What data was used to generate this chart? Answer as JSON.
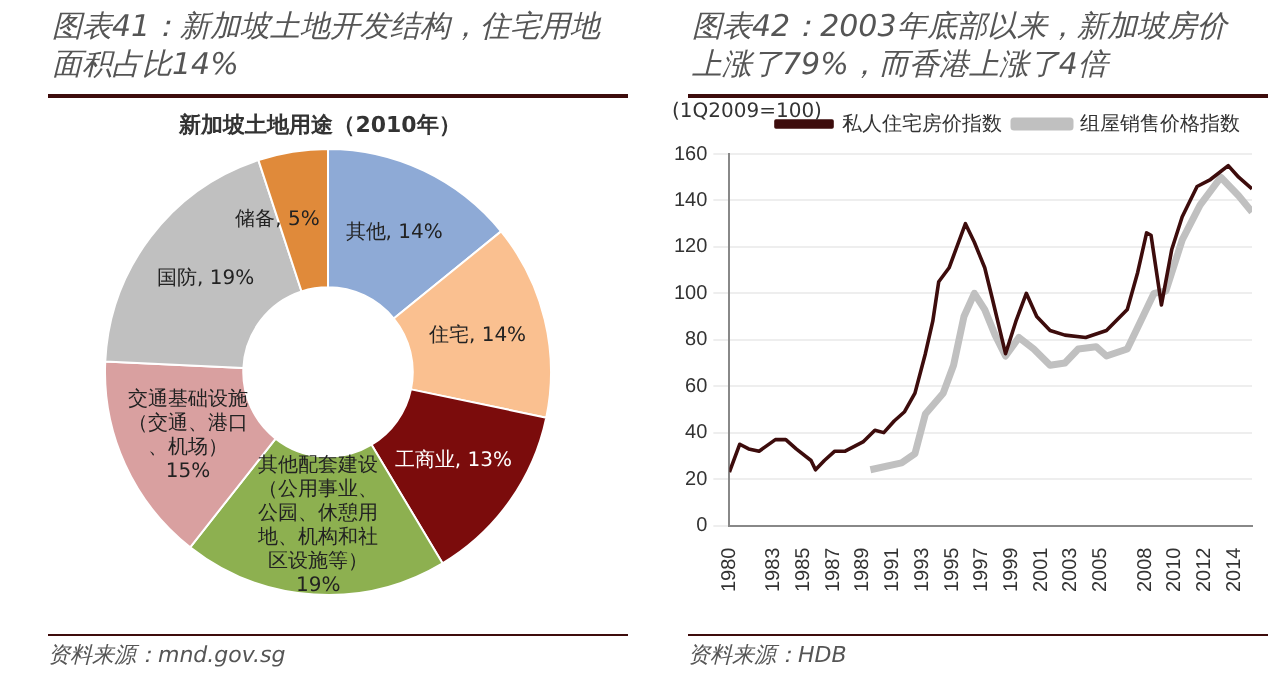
{
  "chart_data": [
    {
      "type": "donut",
      "title": "图表41：新加坡土地开发结构，住宅用地面积占比14%",
      "subtitle": "新加坡土地用途（2010年）",
      "categories": [
        "其他",
        "住宅",
        "工商业",
        "其他配套建设（公用事业、公园、休憩用地、机构和社区设施等）",
        "交通基础设施（交通、港口、机场）",
        "国防",
        "储备"
      ],
      "values": [
        14,
        14,
        13,
        19,
        15,
        19,
        5
      ],
      "value_labels": [
        "14%",
        "14%",
        "13%",
        "19%",
        "15%",
        "19%",
        "5%"
      ],
      "colors": [
        "#8eaad6",
        "#fac090",
        "#7b0c0c",
        "#8db050",
        "#d9a0a0",
        "#c0c0c0",
        "#e08a3a"
      ],
      "legend": false,
      "annotations": [
        "资料来源：mnd.gov.sg"
      ]
    },
    {
      "type": "line",
      "title": "图表42：2003年底部以来，新加坡房价上涨了79%，而香港上涨了4倍",
      "ylabel": "(1Q2009=100)",
      "series": [
        {
          "name": "私人住宅房价指数",
          "color": "#3d0c0c",
          "x": [
            1980,
            1980.7,
            1981.3,
            1982,
            1983.1,
            1983.8,
            1984.5,
            1985.5,
            1985.8,
            1986.4,
            1987.1,
            1987.8,
            1989,
            1989.8,
            1990.4,
            1991.1,
            1991.8,
            1992.5,
            1993.2,
            1993.7,
            1994.1,
            1994.8,
            1995.9,
            1996.5,
            1997.2,
            1997.7,
            1998.6,
            1999.3,
            2000,
            2000.7,
            2001.6,
            2002.6,
            2004,
            2005.4,
            2006.8,
            2007.5,
            2008.1,
            2008.4,
            2009.1,
            2009.8,
            2010.5,
            2011.5,
            2012.4,
            2013.6,
            2014.3,
            2015.2
          ],
          "values": [
            23,
            35,
            33,
            32,
            37,
            37,
            33,
            28,
            24,
            28,
            32,
            32,
            36,
            41,
            40,
            45,
            49,
            57,
            74,
            88,
            105,
            111,
            130,
            122,
            111,
            98,
            74,
            88,
            100,
            90,
            84,
            82,
            81,
            84,
            93,
            109,
            126,
            125,
            95,
            119,
            133,
            146,
            149,
            155,
            150,
            145
          ]
        },
        {
          "name": "组屋销售价格指数",
          "color": "#c0c0c0",
          "x": [
            1989.5,
            1991.6,
            1992.5,
            1993.2,
            1994.4,
            1995.1,
            1995.8,
            1996.5,
            1997.2,
            1997.9,
            1998.6,
            1999.5,
            2000.5,
            2001.6,
            2002.6,
            2003.5,
            2004.7,
            2005.4,
            2006.8,
            2007.7,
            2008.6,
            2009.4,
            2010.5,
            2011.7,
            2013.1,
            2014.3,
            2015.2
          ],
          "values": [
            24,
            27,
            31,
            48,
            57,
            69,
            90,
            100,
            93,
            82,
            73,
            81,
            76,
            69,
            70,
            76,
            77,
            73,
            76,
            88,
            100,
            101,
            123,
            138,
            150,
            142,
            135
          ]
        }
      ],
      "xlim": [
        1980,
        2015.2
      ],
      "xticks": [
        1980,
        1983,
        1985,
        1987,
        1989,
        1991,
        1993,
        1995,
        1997,
        1999,
        2001,
        2003,
        2005,
        2008,
        2010,
        2012,
        2014
      ],
      "ylim": [
        0,
        160
      ],
      "yticks": [
        0,
        20,
        40,
        60,
        80,
        100,
        120,
        140,
        160
      ],
      "grid": "y",
      "legend": "top right",
      "marker": "none",
      "line_style": "solid",
      "annotations": [
        "资料来源：HDB"
      ]
    }
  ]
}
